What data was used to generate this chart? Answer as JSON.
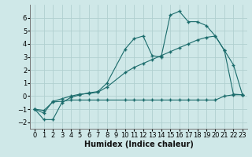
{
  "background_color": "#cfe8e8",
  "grid_color": "#b0d0d0",
  "line_color": "#1a6b6b",
  "xlabel": "Humidex (Indice chaleur)",
  "xlabel_fontsize": 7,
  "tick_fontsize": 6,
  "xlim": [
    -0.5,
    23.5
  ],
  "ylim": [
    -2.5,
    7.0
  ],
  "yticks": [
    -2,
    -1,
    0,
    1,
    2,
    3,
    4,
    5,
    6
  ],
  "xticks": [
    0,
    1,
    2,
    3,
    4,
    5,
    6,
    7,
    8,
    9,
    10,
    11,
    12,
    13,
    14,
    15,
    16,
    17,
    18,
    19,
    20,
    21,
    22,
    23
  ],
  "series1_x": [
    0,
    1,
    2,
    3,
    4,
    5,
    6,
    7,
    8,
    10,
    11,
    12,
    13,
    14,
    15,
    16,
    17,
    18,
    19,
    20,
    21,
    22,
    23
  ],
  "series1_y": [
    -1,
    -1.8,
    -1.8,
    -0.5,
    -0.1,
    0.1,
    0.25,
    0.35,
    1.0,
    3.6,
    4.4,
    4.6,
    3.1,
    3.0,
    6.2,
    6.5,
    5.7,
    5.7,
    5.4,
    4.6,
    3.5,
    2.4,
    0.1
  ],
  "series2_x": [
    0,
    1,
    2,
    3,
    4,
    5,
    6,
    7,
    8,
    10,
    11,
    12,
    13,
    14,
    15,
    16,
    17,
    18,
    19,
    20,
    21,
    22,
    23
  ],
  "series2_y": [
    -1,
    -1.3,
    -0.4,
    -0.2,
    0.0,
    0.15,
    0.2,
    0.3,
    0.7,
    1.8,
    2.2,
    2.5,
    2.8,
    3.1,
    3.4,
    3.7,
    4.0,
    4.3,
    4.5,
    4.6,
    3.5,
    0.15,
    0.1
  ],
  "series3_x": [
    0,
    1,
    2,
    3,
    4,
    5,
    6,
    7,
    8,
    10,
    11,
    12,
    13,
    14,
    15,
    16,
    17,
    18,
    19,
    20,
    21,
    22,
    23
  ],
  "series3_y": [
    -1,
    -1.1,
    -0.45,
    -0.4,
    -0.3,
    -0.3,
    -0.3,
    -0.3,
    -0.3,
    -0.3,
    -0.3,
    -0.3,
    -0.3,
    -0.3,
    -0.3,
    -0.3,
    -0.3,
    -0.3,
    -0.3,
    -0.3,
    0.0,
    0.1,
    0.1
  ]
}
